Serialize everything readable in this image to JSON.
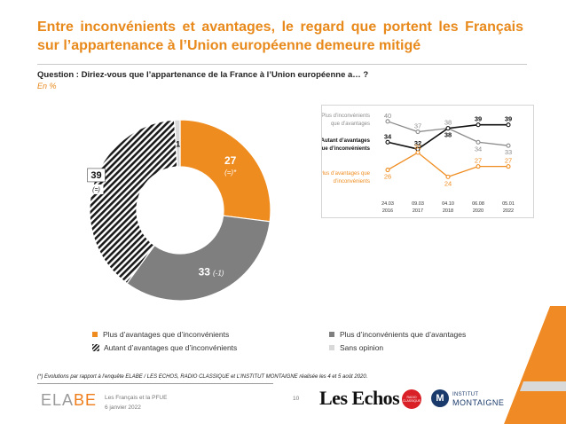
{
  "title": "Entre inconvénients et avantages, le regard que portent les Français sur l’appartenance à l’Union européenne demeure mitigé",
  "question": "Question : Diriez-vous que l’appartenance de la France à l’Union européenne a… ?",
  "unit": "En %",
  "colors": {
    "orange": "#ef8c1f",
    "gray": "#7f7f7f",
    "black": "#222222",
    "light": "#d9d9d9",
    "title": "#e8891b"
  },
  "chart_data": [
    {
      "type": "pie",
      "subtype": "donut",
      "slices": [
        {
          "name": "Plus d’avantages que d’inconvénients",
          "value": 27,
          "label": "27",
          "change": "(=)*",
          "color": "#ef8c1f"
        },
        {
          "name": "Plus d’inconvénients que d’avantages",
          "value": 33,
          "label": "33",
          "change": "(-1)",
          "color": "#7f7f7f"
        },
        {
          "name": "Autant d’avantages que d’inconvénients",
          "value": 39,
          "label": "39",
          "change": "(=)",
          "color": "hatched-black"
        },
        {
          "name": "Sans opinion",
          "value": 1,
          "label": "1",
          "change": "",
          "color": "#d9d9d9"
        }
      ]
    },
    {
      "type": "line",
      "x": [
        "24.03\n2016",
        "09.03\n2017",
        "04.10\n2018",
        "06.08\n2020",
        "05.01\n2022"
      ],
      "ylim": [
        20,
        42
      ],
      "series": [
        {
          "name": "Plus d’inconvénients que d’avantages",
          "values": [
            40,
            37,
            38,
            34,
            33
          ],
          "color": "#8c8c8c"
        },
        {
          "name": "Autant d’avantages que d’inconvénients",
          "values": [
            34,
            32,
            38,
            39,
            39
          ],
          "color": "#111111"
        },
        {
          "name": "Plus d’avantages que d’inconvénients",
          "values": [
            26,
            31,
            24,
            27,
            27
          ],
          "color": "#ef8c1f"
        }
      ]
    }
  ],
  "legend": [
    {
      "label": "Plus d’avantages que d’inconvénients",
      "swatch": "orange"
    },
    {
      "label": "Plus d’inconvénients que d’avantages",
      "swatch": "gray"
    },
    {
      "label": "Autant d’avantages que d’inconvénients",
      "swatch": "hatched"
    },
    {
      "label": "Sans opinion",
      "swatch": "light"
    }
  ],
  "footnote": "(*) Evolutions par rapport à l’enquête ELABE / LES ECHOS, RADIO CLASSIQUE et L’INSTITUT MONTAIGNE réalisée les 4 et 5 août 2020.",
  "footer": {
    "logo_left": "ELA",
    "logo_right": "BE",
    "study": "Les Français et la PFUE",
    "date": "6 janvier 2022",
    "page": "10",
    "partner1": "Les Echos",
    "partner2": "RADIO CLASSIQUE",
    "partner3_mark": "M",
    "partner3_top": "INSTITUT",
    "partner3_bottom": "MONTAIGNE"
  }
}
